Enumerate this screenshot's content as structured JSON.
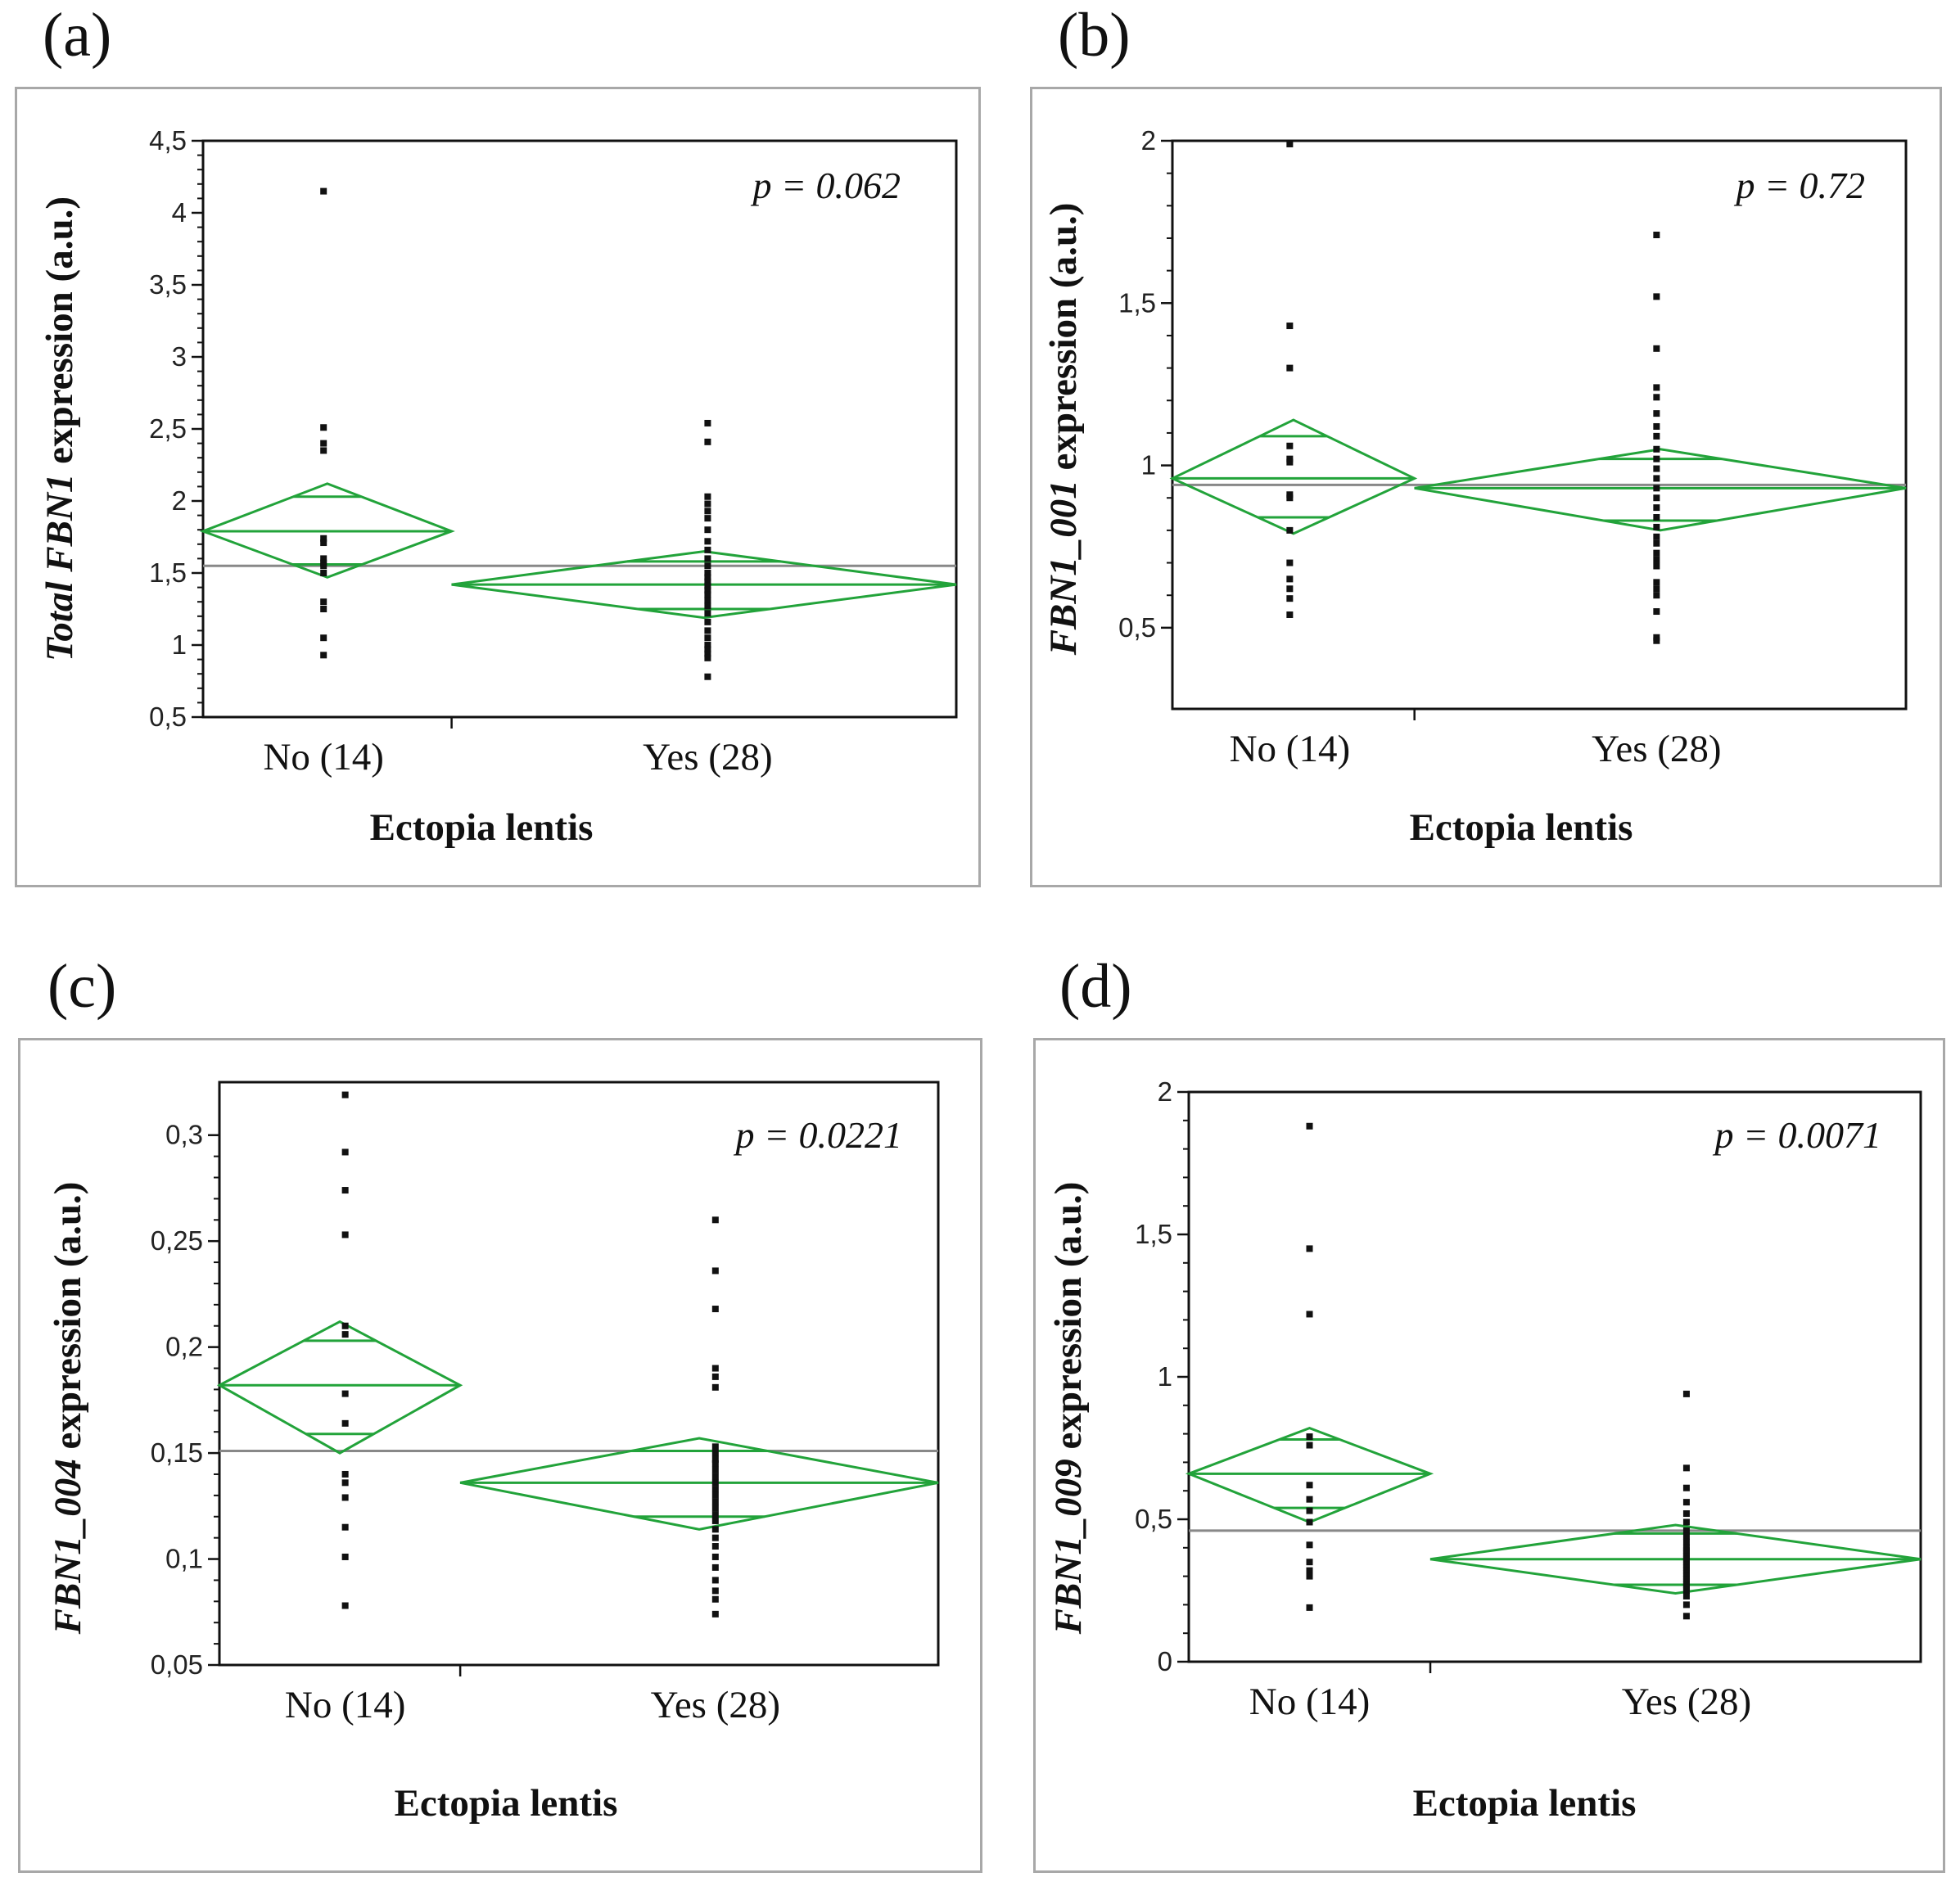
{
  "colors": {
    "diamond": "#22a33a",
    "grand_mean": "#888888",
    "points": "#111111",
    "axis": "#111111",
    "frame": "#a8a8a8"
  },
  "chart_data": [
    {
      "panel": "(a)",
      "type": "scatter",
      "xlabel": "Ectopia lentis",
      "ylabel_prefix": "Total FBN1",
      "ylabel_suffix": " expression (a.u.)",
      "p_label": "p = 0.062",
      "categories": [
        "No (14)",
        "Yes (28)"
      ],
      "ylim": [
        0.5,
        4.5
      ],
      "yticks": [
        0.5,
        1,
        1.5,
        2,
        2.5,
        3,
        3.5,
        4,
        4.5
      ],
      "ytick_labels": [
        "0,5",
        "1",
        "1,5",
        "2",
        "2,5",
        "3",
        "3,5",
        "4",
        "4,5"
      ],
      "grand_mean": 1.55,
      "groups": [
        {
          "name": "No (14)",
          "mean": 1.79,
          "ci": [
            1.47,
            2.12
          ],
          "overlap": [
            1.56,
            2.03
          ],
          "points": [
            4.15,
            2.51,
            2.4,
            2.35,
            1.74,
            1.71,
            1.6,
            1.57,
            1.55,
            1.5,
            1.3,
            1.25,
            1.05,
            0.93
          ]
        },
        {
          "name": "Yes (28)",
          "mean": 1.42,
          "ci": [
            1.19,
            1.65
          ],
          "overlap": [
            1.25,
            1.58
          ],
          "points": [
            2.54,
            2.41,
            2.03,
            1.98,
            1.93,
            1.88,
            1.8,
            1.72,
            1.66,
            1.6,
            1.55,
            1.5,
            1.47,
            1.44,
            1.41,
            1.38,
            1.35,
            1.31,
            1.27,
            1.22,
            1.16,
            1.1,
            1.05,
            1.0,
            0.97,
            0.94,
            0.91,
            0.78
          ]
        }
      ]
    },
    {
      "panel": "(b)",
      "type": "scatter",
      "xlabel": "Ectopia lentis",
      "ylabel_prefix": "FBN1_001",
      "ylabel_suffix": " expression (a.u.)",
      "p_label": "p = 0.72",
      "categories": [
        "No (14)",
        "Yes (28)"
      ],
      "ylim": [
        0.25,
        2.0
      ],
      "yticks": [
        0.5,
        1,
        1.5,
        2
      ],
      "ytick_labels": [
        "0,5",
        "1",
        "1,5",
        "2"
      ],
      "grand_mean": 0.94,
      "groups": [
        {
          "name": "No (14)",
          "mean": 0.96,
          "ci": [
            0.79,
            1.14
          ],
          "overlap": [
            0.84,
            1.09
          ],
          "points": [
            1.99,
            1.43,
            1.3,
            1.06,
            1.02,
            1.01,
            0.91,
            0.9,
            0.8,
            0.7,
            0.65,
            0.62,
            0.59,
            0.54
          ]
        },
        {
          "name": "Yes (28)",
          "mean": 0.93,
          "ci": [
            0.8,
            1.05
          ],
          "overlap": [
            0.83,
            1.02
          ],
          "points": [
            1.71,
            1.52,
            1.36,
            1.24,
            1.21,
            1.16,
            1.12,
            1.09,
            1.05,
            1.02,
            0.99,
            0.96,
            0.93,
            0.9,
            0.87,
            0.84,
            0.81,
            0.78,
            0.76,
            0.73,
            0.71,
            0.69,
            0.64,
            0.62,
            0.6,
            0.55,
            0.47,
            0.46
          ]
        }
      ]
    },
    {
      "panel": "(c)",
      "type": "scatter",
      "xlabel": "Ectopia lentis",
      "ylabel_prefix": "FBN1_004",
      "ylabel_suffix": " expression (a.u.)",
      "p_label": "p = 0.0221",
      "categories": [
        "No (14)",
        "Yes (28)"
      ],
      "ylim": [
        0.05,
        0.325
      ],
      "yticks": [
        0.05,
        0.1,
        0.15,
        0.2,
        0.25,
        0.3
      ],
      "ytick_labels": [
        "0,05",
        "0,1",
        "0,15",
        "0,2",
        "0,25",
        "0,3"
      ],
      "grand_mean": 0.151,
      "groups": [
        {
          "name": "No (14)",
          "mean": 0.182,
          "ci": [
            0.15,
            0.212
          ],
          "overlap": [
            0.159,
            0.203
          ],
          "points": [
            0.319,
            0.292,
            0.274,
            0.253,
            0.21,
            0.206,
            0.178,
            0.164,
            0.14,
            0.136,
            0.129,
            0.115,
            0.101,
            0.078
          ]
        },
        {
          "name": "Yes (28)",
          "mean": 0.136,
          "ci": [
            0.114,
            0.157
          ],
          "overlap": [
            0.12,
            0.151
          ],
          "points": [
            0.26,
            0.236,
            0.218,
            0.19,
            0.186,
            0.181,
            0.153,
            0.15,
            0.147,
            0.145,
            0.142,
            0.139,
            0.136,
            0.133,
            0.13,
            0.127,
            0.124,
            0.121,
            0.118,
            0.114,
            0.11,
            0.106,
            0.101,
            0.096,
            0.09,
            0.085,
            0.081,
            0.074
          ]
        }
      ]
    },
    {
      "panel": "(d)",
      "type": "scatter",
      "xlabel": "Ectopia lentis",
      "ylabel_prefix": "FBN1_009",
      "ylabel_suffix": " expression (a.u.)",
      "p_label": "p = 0.0071",
      "categories": [
        "No (14)",
        "Yes (28)"
      ],
      "ylim": [
        0,
        2
      ],
      "yticks": [
        0,
        0.5,
        1,
        1.5,
        2
      ],
      "ytick_labels": [
        "0",
        "0,5",
        "1",
        "1,5",
        "2"
      ],
      "grand_mean": 0.46,
      "groups": [
        {
          "name": "No (14)",
          "mean": 0.66,
          "ci": [
            0.49,
            0.82
          ],
          "overlap": [
            0.54,
            0.78
          ],
          "points": [
            1.88,
            1.45,
            1.22,
            0.79,
            0.76,
            0.62,
            0.57,
            0.53,
            0.49,
            0.41,
            0.35,
            0.32,
            0.3,
            0.19
          ]
        },
        {
          "name": "Yes (28)",
          "mean": 0.36,
          "ci": [
            0.24,
            0.48
          ],
          "overlap": [
            0.27,
            0.45
          ],
          "points": [
            0.94,
            0.68,
            0.61,
            0.56,
            0.52,
            0.49,
            0.46,
            0.44,
            0.42,
            0.4,
            0.39,
            0.38,
            0.37,
            0.36,
            0.35,
            0.34,
            0.33,
            0.32,
            0.31,
            0.3,
            0.29,
            0.28,
            0.27,
            0.26,
            0.25,
            0.23,
            0.2,
            0.16
          ]
        }
      ]
    }
  ]
}
